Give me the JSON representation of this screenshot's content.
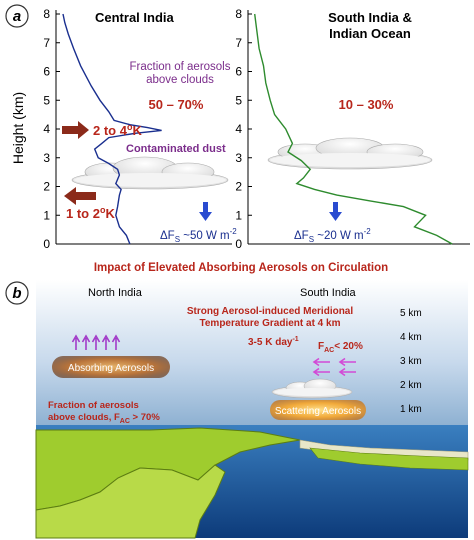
{
  "panel_a": {
    "badge": "a",
    "left": {
      "title": "Central India",
      "frac_line1": "Fraction of aerosols",
      "frac_line2": "above clouds",
      "frac_value": "50 – 70%",
      "warm_label": "2 to 4",
      "warm_unit": "K",
      "dust_label": "Contaminated dust",
      "cool_label": "1 to 2",
      "cool_unit": "K",
      "flux_sym": "ΔF",
      "flux_sub": "S",
      "flux_val": " ~50 W m",
      "flux_exp": "-2"
    },
    "right": {
      "title_line1": "South India &",
      "title_line2": "Indian Ocean",
      "frac_value": "10 – 30%",
      "flux_sym": "ΔF",
      "flux_sub": "S",
      "flux_val": " ~20 W m",
      "flux_exp": "-2"
    },
    "ylabel": "Height (km)",
    "yticks": [
      "0",
      "1",
      "2",
      "3",
      "4",
      "5",
      "6",
      "7",
      "8"
    ],
    "colors": {
      "left_profile": "#1a2f8f",
      "right_profile": "#2e8b2e",
      "red": "#b8261b",
      "purple": "#7b2d8b",
      "arrow_blue": "#2a4bd0",
      "arrow_red": "#8b2a1a"
    }
  },
  "chart_data": [
    {
      "type": "line",
      "title": "Central India",
      "ylabel": "Height (km)",
      "ylim": [
        0,
        8
      ],
      "series": [
        {
          "values_x_rel": [
            0.42,
            0.4,
            0.36,
            0.34,
            0.35,
            0.36,
            0.37,
            0.34,
            0.36,
            0.35,
            0.3,
            0.24,
            0.22,
            0.26,
            0.3,
            0.45,
            0.6,
            0.52,
            0.42,
            0.33,
            0.3,
            0.25,
            0.2,
            0.14,
            0.1,
            0.07,
            0.05,
            0.04
          ],
          "y": [
            0.0,
            0.3,
            0.6,
            1.0,
            1.3,
            1.7,
            1.9,
            2.1,
            2.4,
            2.6,
            2.8,
            3.0,
            3.3,
            3.5,
            3.7,
            3.85,
            3.95,
            4.05,
            4.15,
            4.3,
            4.6,
            5.0,
            5.5,
            6.2,
            6.8,
            7.3,
            7.7,
            8.0
          ]
        }
      ]
    },
    {
      "type": "line",
      "title": "South India & Indian Ocean",
      "ylim": [
        0,
        8
      ],
      "series": [
        {
          "values_x_rel": [
            0.92,
            0.85,
            0.75,
            0.8,
            0.7,
            0.55,
            0.4,
            0.3,
            0.22,
            0.25,
            0.28,
            0.24,
            0.18,
            0.2,
            0.17,
            0.12,
            0.1,
            0.08,
            0.07,
            0.05,
            0.04,
            0.03
          ],
          "y": [
            0.0,
            0.3,
            0.6,
            1.0,
            1.3,
            1.5,
            1.7,
            1.9,
            2.1,
            2.3,
            2.6,
            2.9,
            3.2,
            3.5,
            4.0,
            4.5,
            5.0,
            5.6,
            6.2,
            6.8,
            7.4,
            8.0
          ]
        }
      ]
    }
  ],
  "panel_b": {
    "heading": "Impact of Elevated Absorbing Aerosols on Circulation",
    "badge": "b",
    "north": "North India",
    "south": "South India",
    "gradient_line1": "Strong Aerosol-induced Meridional",
    "gradient_line2": "Temperature Gradient at 4 km",
    "rate": "3-5 K day",
    "rate_exp": "-1",
    "fac_prefix": "F",
    "fac_sub": "AC",
    "fac_value": "< 20%",
    "absorbing": "Absorbing Aerosols",
    "scattering": "Scattering Aerosols",
    "frac_line1": "Fraction of aerosols",
    "frac_line2": "above clouds, F",
    "frac_sub": "AC",
    "frac_value": " > 70%",
    "km_labels": [
      "5 km",
      "4 km",
      "3 km",
      "2 km",
      "1 km"
    ]
  }
}
